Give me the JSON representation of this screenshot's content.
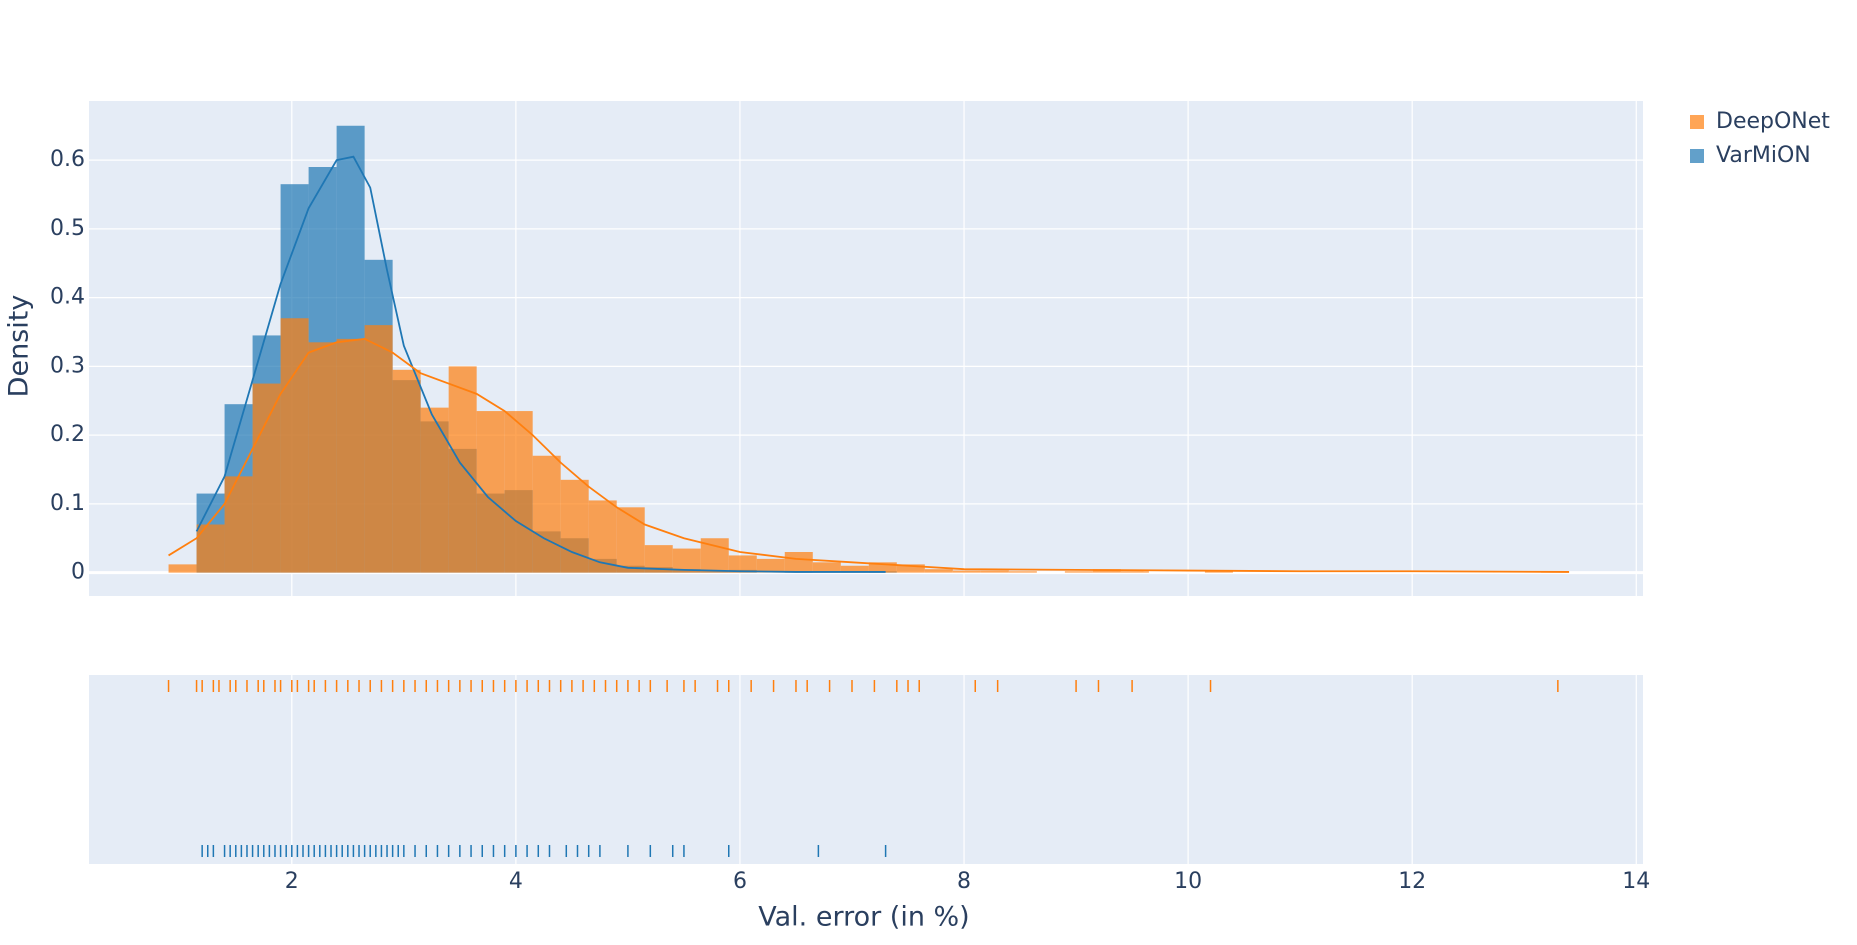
{
  "chart_data": {
    "type": "histogram",
    "xlabel": "Val. error (in %)",
    "ylabel": "Density",
    "xlim": [
      0.19,
      14.06
    ],
    "ylim": [
      -0.034,
      0.686
    ],
    "xticks": [
      2,
      4,
      6,
      8,
      10,
      12,
      14
    ],
    "yticks": [
      0,
      0.1,
      0.2,
      0.3,
      0.4,
      0.5,
      0.6
    ],
    "grid": true,
    "legend": "top-right",
    "series": [
      {
        "name": "DeepONet",
        "color": "#ff7f0e",
        "bins": [
          0.9,
          1.15,
          1.4,
          1.65,
          1.9,
          2.15,
          2.4,
          2.65,
          2.9,
          3.15,
          3.4,
          3.65,
          3.9,
          4.15,
          4.4,
          4.65,
          4.9,
          5.15,
          5.4,
          5.65,
          5.9,
          6.15,
          6.4,
          6.65,
          6.9,
          7.15,
          7.4,
          7.65,
          7.9,
          8.15,
          8.4,
          8.65,
          8.9,
          9.15,
          9.4,
          9.65,
          9.9,
          10.15,
          10.4,
          10.65,
          10.9,
          11.15,
          11.4,
          11.65,
          11.9,
          12.15,
          12.4,
          12.65,
          12.9,
          13.15,
          13.4
        ],
        "values": [
          0.012,
          0.07,
          0.14,
          0.275,
          0.37,
          0.335,
          0.34,
          0.36,
          0.295,
          0.24,
          0.3,
          0.235,
          0.235,
          0.17,
          0.135,
          0.105,
          0.095,
          0.04,
          0.035,
          0.05,
          0.025,
          0.02,
          0.03,
          0.015,
          0.01,
          0.015,
          0.012,
          0.005,
          0.003,
          0.003,
          0.002,
          0,
          0.002,
          0.005,
          0.002,
          0,
          0,
          0.002,
          0,
          0,
          0,
          0,
          0,
          0,
          0,
          0,
          0,
          0,
          0,
          0.002
        ],
        "kde_x": [
          0.9,
          1.15,
          1.4,
          1.65,
          1.9,
          2.15,
          2.4,
          2.65,
          2.9,
          3.15,
          3.4,
          3.65,
          3.9,
          4.15,
          4.4,
          4.65,
          4.9,
          5.15,
          5.5,
          6.0,
          6.5,
          7.0,
          7.5,
          8.0,
          9.0,
          10,
          11,
          12,
          13.4
        ],
        "kde_y": [
          0.025,
          0.05,
          0.1,
          0.18,
          0.26,
          0.32,
          0.335,
          0.34,
          0.32,
          0.29,
          0.275,
          0.26,
          0.235,
          0.2,
          0.16,
          0.125,
          0.095,
          0.07,
          0.05,
          0.03,
          0.02,
          0.015,
          0.01,
          0.005,
          0.004,
          0.003,
          0.002,
          0.002,
          0.001
        ],
        "rug": [
          0.9,
          1.15,
          1.2,
          1.3,
          1.35,
          1.45,
          1.5,
          1.6,
          1.7,
          1.75,
          1.85,
          1.9,
          2.0,
          2.05,
          2.15,
          2.2,
          2.3,
          2.4,
          2.5,
          2.6,
          2.7,
          2.8,
          2.9,
          3.0,
          3.1,
          3.2,
          3.3,
          3.4,
          3.5,
          3.6,
          3.7,
          3.8,
          3.9,
          4.0,
          4.1,
          4.2,
          4.3,
          4.4,
          4.5,
          4.6,
          4.7,
          4.8,
          4.9,
          5.0,
          5.1,
          5.2,
          5.35,
          5.5,
          5.6,
          5.8,
          5.9,
          6.1,
          6.3,
          6.5,
          6.6,
          6.8,
          7.0,
          7.2,
          7.4,
          7.5,
          7.6,
          8.1,
          8.3,
          9.0,
          9.2,
          9.5,
          10.2,
          13.3
        ]
      },
      {
        "name": "VarMiON",
        "color": "#1f77b4",
        "bins": [
          1.15,
          1.4,
          1.65,
          1.9,
          2.15,
          2.4,
          2.65,
          2.9,
          3.15,
          3.4,
          3.65,
          3.9,
          4.15,
          4.4,
          4.65,
          4.9,
          5.15,
          5.4,
          5.65,
          5.9,
          6.15,
          6.4,
          6.65,
          6.9,
          7.15,
          7.4
        ],
        "values": [
          0.115,
          0.245,
          0.345,
          0.565,
          0.59,
          0.65,
          0.455,
          0.28,
          0.22,
          0.18,
          0.115,
          0.12,
          0.06,
          0.05,
          0.02,
          0.01,
          0.008,
          0.005,
          0.002,
          0.004,
          0,
          0.002,
          0,
          0,
          0.002
        ],
        "kde_x": [
          1.15,
          1.4,
          1.65,
          1.9,
          2.15,
          2.4,
          2.55,
          2.7,
          2.85,
          3.0,
          3.25,
          3.5,
          3.75,
          4.0,
          4.25,
          4.5,
          4.75,
          5.0,
          5.5,
          6.0,
          6.5,
          7.3
        ],
        "kde_y": [
          0.06,
          0.14,
          0.28,
          0.42,
          0.53,
          0.6,
          0.605,
          0.56,
          0.44,
          0.33,
          0.23,
          0.16,
          0.11,
          0.075,
          0.05,
          0.03,
          0.015,
          0.007,
          0.004,
          0.002,
          0.001,
          0.001
        ],
        "rug": [
          1.2,
          1.25,
          1.3,
          1.4,
          1.45,
          1.5,
          1.55,
          1.6,
          1.65,
          1.7,
          1.75,
          1.8,
          1.85,
          1.9,
          1.95,
          2.0,
          2.05,
          2.1,
          2.15,
          2.2,
          2.25,
          2.3,
          2.35,
          2.4,
          2.45,
          2.5,
          2.55,
          2.6,
          2.65,
          2.7,
          2.75,
          2.8,
          2.85,
          2.9,
          2.95,
          3.0,
          3.1,
          3.2,
          3.3,
          3.4,
          3.5,
          3.6,
          3.7,
          3.8,
          3.9,
          4.0,
          4.1,
          4.2,
          4.3,
          4.45,
          4.55,
          4.65,
          4.75,
          5.0,
          5.2,
          5.4,
          5.5,
          5.9,
          6.7,
          7.3
        ]
      }
    ]
  }
}
